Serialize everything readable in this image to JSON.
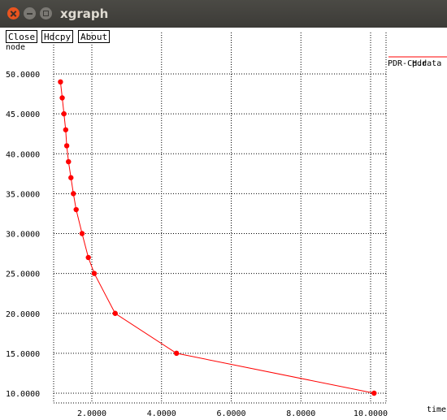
{
  "window": {
    "title": "xgraph"
  },
  "toolbar": {
    "close_label": "Close",
    "hdcpy_label": "Hdcpy",
    "about_label": "About"
  },
  "chart_data": {
    "type": "line",
    "title": "pdr",
    "xlabel": "time",
    "ylabel": "node",
    "xlim": [
      1.0,
      10.2
    ],
    "ylim": [
      9.0,
      51.0
    ],
    "x_ticks": [
      2,
      4,
      6,
      8,
      10
    ],
    "x_tick_labels": [
      "2.0000",
      "4.0000",
      "6.0000",
      "8.0000",
      "10.0000"
    ],
    "y_ticks": [
      10,
      15,
      20,
      25,
      30,
      35,
      40,
      45,
      50
    ],
    "y_tick_labels": [
      "10.0000",
      "15.0000",
      "20.0000",
      "25.0000",
      "30.0000",
      "35.0000",
      "40.0000",
      "45.0000",
      "50.0000"
    ],
    "grid": true,
    "legend_position": "top-right",
    "series": [
      {
        "name": "PDR-CH.data",
        "color": "#ff0000",
        "x": [
          1.1,
          1.15,
          1.2,
          1.25,
          1.28,
          1.33,
          1.4,
          1.47,
          1.55,
          1.72,
          1.9,
          2.07,
          2.67,
          4.43,
          10.1
        ],
        "y": [
          49,
          47,
          45,
          43,
          41,
          39,
          37,
          35,
          33,
          30,
          27,
          25,
          20,
          15,
          10
        ]
      }
    ]
  }
}
